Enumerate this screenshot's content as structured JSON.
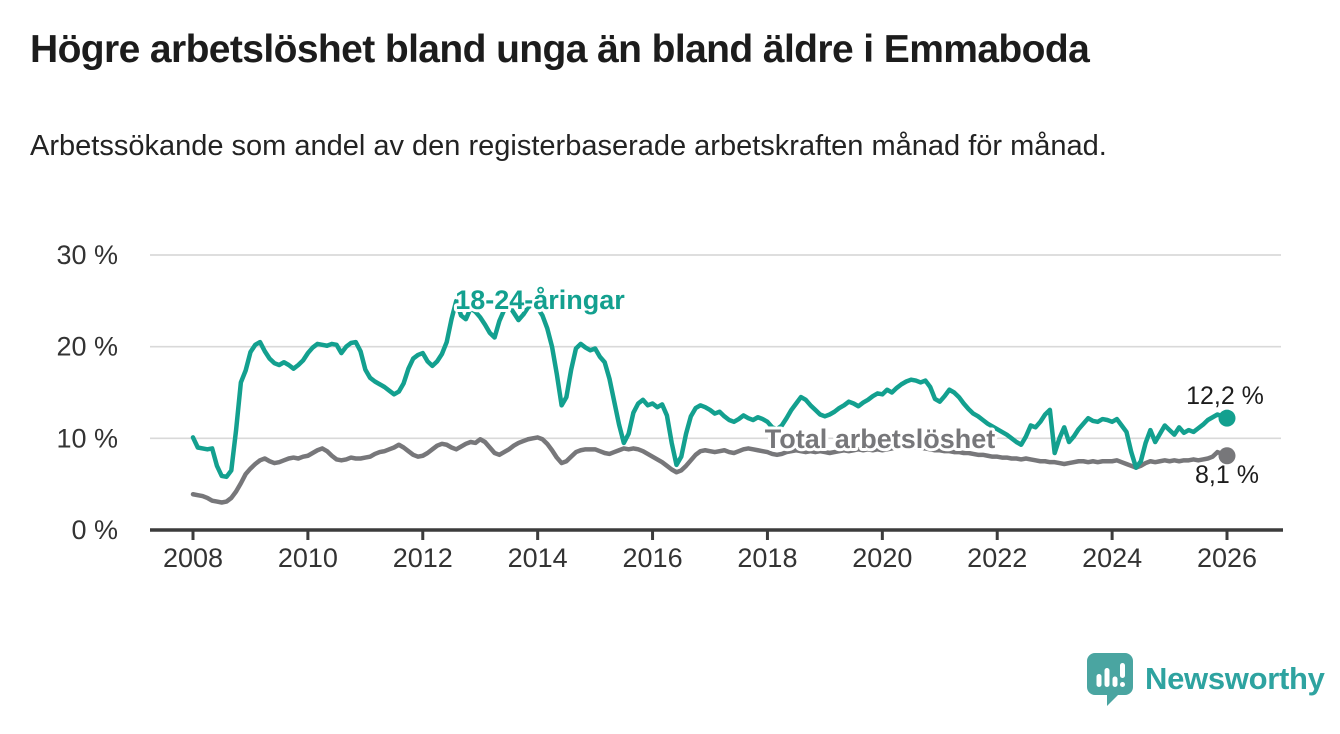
{
  "header": {
    "title": "Högre arbetslöshet bland unga än bland äldre i Emmaboda",
    "subtitle": "Arbetssökande som andel av den registerbaserade arbetskraften månad för månad."
  },
  "footer": {
    "brand": "Newsworthy"
  },
  "chart_data": {
    "type": "line",
    "x_unit": "year-month",
    "x_start": "2008-01",
    "x_end": "2026-01",
    "points_per_year": 12,
    "grid": "horizontal",
    "x_axis": {
      "ticks": [
        2008,
        2010,
        2012,
        2014,
        2016,
        2018,
        2020,
        2022,
        2024,
        2026
      ]
    },
    "y_axis": {
      "unit": "%",
      "range": [
        0,
        30
      ],
      "ticks": [
        {
          "value": 0,
          "label": "0 %"
        },
        {
          "value": 10,
          "label": "10 %"
        },
        {
          "value": 20,
          "label": "20 %"
        },
        {
          "value": 30,
          "label": "30 %"
        }
      ]
    },
    "series": [
      {
        "id": "young",
        "label": "18-24-åringar",
        "color": "#13a08f",
        "end_label": "12,2 %",
        "end_value": 12.2,
        "values": [
          10.1,
          9.0,
          8.9,
          8.8,
          8.9,
          7.0,
          5.9,
          5.8,
          6.5,
          10.9,
          16.1,
          17.4,
          19.4,
          20.2,
          20.5,
          19.5,
          18.7,
          18.2,
          18.0,
          18.3,
          18.0,
          17.6,
          18.0,
          18.5,
          19.3,
          19.9,
          20.3,
          20.2,
          20.1,
          20.3,
          20.2,
          19.3,
          20.0,
          20.4,
          20.5,
          19.5,
          17.5,
          16.6,
          16.2,
          15.9,
          15.6,
          15.2,
          14.8,
          15.1,
          16.0,
          17.6,
          18.7,
          19.1,
          19.3,
          18.4,
          17.9,
          18.4,
          19.2,
          20.5,
          23.0,
          25.0,
          23.4,
          23.0,
          24.2,
          23.8,
          23.2,
          22.4,
          21.5,
          21.0,
          22.8,
          24.0,
          24.5,
          23.7,
          22.9,
          23.5,
          24.3,
          24.6,
          24.2,
          23.4,
          22.0,
          20.0,
          17.0,
          13.6,
          14.5,
          17.5,
          19.8,
          20.3,
          19.9,
          19.6,
          19.8,
          18.9,
          18.3,
          16.5,
          14.0,
          11.5,
          9.5,
          10.5,
          12.8,
          13.8,
          14.2,
          13.6,
          13.8,
          13.4,
          13.7,
          12.5,
          9.5,
          7.1,
          8.0,
          10.5,
          12.4,
          13.3,
          13.6,
          13.4,
          13.1,
          12.7,
          12.9,
          12.4,
          12.0,
          11.8,
          12.1,
          12.5,
          12.2,
          12.0,
          12.3,
          12.1,
          11.8,
          11.2,
          11.0,
          11.4,
          12.2,
          13.1,
          13.8,
          14.5,
          14.2,
          13.6,
          13.1,
          12.6,
          12.4,
          12.6,
          12.9,
          13.3,
          13.6,
          14.0,
          13.8,
          13.5,
          13.9,
          14.2,
          14.6,
          14.9,
          14.8,
          15.3,
          15.0,
          15.5,
          15.9,
          16.2,
          16.4,
          16.3,
          16.1,
          16.3,
          15.6,
          14.3,
          14.0,
          14.6,
          15.3,
          15.0,
          14.5,
          13.8,
          13.2,
          12.7,
          12.4,
          12.0,
          11.6,
          11.3,
          11.0,
          10.7,
          10.4,
          10.0,
          9.6,
          9.3,
          10.2,
          11.4,
          11.2,
          11.8,
          12.6,
          13.1,
          8.4,
          10.0,
          11.2,
          9.6,
          10.2,
          11.0,
          11.6,
          12.2,
          11.9,
          11.8,
          12.1,
          12.0,
          11.8,
          12.1,
          11.4,
          10.7,
          8.5,
          6.8,
          7.5,
          9.5,
          10.9,
          9.6,
          10.5,
          11.4,
          10.9,
          10.4,
          11.2,
          10.6,
          10.9,
          10.7,
          11.1,
          11.5,
          12.0,
          12.3,
          12.6,
          12.4,
          12.2
        ]
      },
      {
        "id": "total",
        "label": "Total arbetslöshet",
        "color": "#77777a",
        "end_label": "8,1 %",
        "end_value": 8.1,
        "values": [
          3.9,
          3.8,
          3.7,
          3.5,
          3.2,
          3.1,
          3.0,
          3.1,
          3.5,
          4.2,
          5.1,
          6.1,
          6.7,
          7.2,
          7.6,
          7.8,
          7.5,
          7.3,
          7.4,
          7.6,
          7.8,
          7.9,
          7.8,
          8.0,
          8.1,
          8.4,
          8.7,
          8.9,
          8.6,
          8.1,
          7.7,
          7.6,
          7.7,
          7.9,
          7.8,
          7.8,
          7.9,
          8.0,
          8.3,
          8.5,
          8.6,
          8.8,
          9.0,
          9.3,
          9.0,
          8.6,
          8.2,
          8.0,
          8.1,
          8.4,
          8.8,
          9.2,
          9.4,
          9.3,
          9.0,
          8.8,
          9.1,
          9.4,
          9.6,
          9.5,
          9.9,
          9.6,
          9.0,
          8.4,
          8.2,
          8.5,
          8.8,
          9.2,
          9.5,
          9.7,
          9.9,
          10.0,
          10.1,
          9.9,
          9.4,
          8.7,
          7.9,
          7.3,
          7.5,
          8.0,
          8.5,
          8.7,
          8.8,
          8.8,
          8.8,
          8.6,
          8.4,
          8.3,
          8.5,
          8.7,
          8.9,
          8.8,
          8.9,
          8.8,
          8.6,
          8.3,
          8.0,
          7.7,
          7.4,
          7.0,
          6.6,
          6.3,
          6.5,
          7.0,
          7.6,
          8.2,
          8.6,
          8.7,
          8.6,
          8.5,
          8.6,
          8.7,
          8.5,
          8.4,
          8.6,
          8.8,
          8.9,
          8.8,
          8.7,
          8.6,
          8.5,
          8.3,
          8.2,
          8.3,
          8.5,
          8.6,
          8.7,
          8.6,
          8.5,
          8.6,
          8.5,
          8.6,
          8.5,
          8.4,
          8.5,
          8.6,
          8.7,
          8.6,
          8.7,
          8.8,
          8.7,
          8.8,
          8.7,
          8.8,
          8.7,
          8.8,
          8.9,
          9.0,
          9.1,
          9.2,
          9.1,
          9.0,
          8.9,
          8.9,
          8.8,
          8.7,
          8.7,
          8.6,
          8.6,
          8.5,
          8.5,
          8.4,
          8.4,
          8.3,
          8.2,
          8.2,
          8.1,
          8.0,
          8.0,
          7.9,
          7.9,
          7.8,
          7.8,
          7.7,
          7.8,
          7.7,
          7.6,
          7.5,
          7.5,
          7.4,
          7.4,
          7.3,
          7.2,
          7.3,
          7.4,
          7.5,
          7.5,
          7.4,
          7.5,
          7.4,
          7.5,
          7.5,
          7.5,
          7.6,
          7.4,
          7.2,
          7.0,
          6.8,
          7.0,
          7.3,
          7.5,
          7.4,
          7.5,
          7.6,
          7.5,
          7.6,
          7.5,
          7.6,
          7.6,
          7.7,
          7.6,
          7.7,
          7.8,
          8.0,
          8.5,
          8.3,
          8.1
        ]
      }
    ]
  }
}
